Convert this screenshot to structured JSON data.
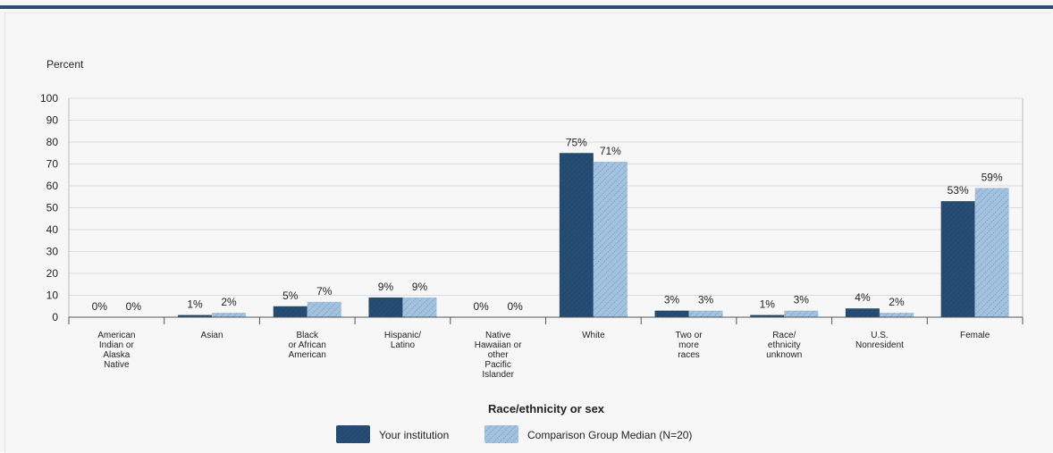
{
  "chart_data": {
    "type": "bar",
    "ylabel": "Percent",
    "xlabel": "Race/ethnicity or sex",
    "ylim": [
      0,
      100
    ],
    "yticks": [
      0,
      10,
      20,
      30,
      40,
      50,
      60,
      70,
      80,
      90,
      100
    ],
    "grid": true,
    "legend_position": "bottom",
    "categories": [
      [
        "American",
        "Indian or",
        "Alaska",
        "Native"
      ],
      [
        "Asian"
      ],
      [
        "Black",
        "or African",
        "American"
      ],
      [
        "Hispanic/",
        "Latino"
      ],
      [
        "Native",
        "Hawaiian or",
        "other",
        "Pacific",
        "Islander"
      ],
      [
        "White"
      ],
      [
        "Two or",
        "more",
        "races"
      ],
      [
        "Race/",
        "ethnicity",
        "unknown"
      ],
      [
        "U.S.",
        "Nonresident"
      ],
      [
        "Female"
      ]
    ],
    "series": [
      {
        "name": "Your institution",
        "color": "#244a73",
        "pattern": "solid",
        "values": [
          0,
          1,
          5,
          9,
          0,
          75,
          3,
          1,
          4,
          53
        ],
        "labels": [
          "0%",
          "1%",
          "5%",
          "9%",
          "0%",
          "75%",
          "3%",
          "1%",
          "4%",
          "53%"
        ]
      },
      {
        "name": "Comparison Group Median (N=20)",
        "color": "#9dbddd",
        "pattern": "hatched",
        "values": [
          0,
          2,
          7,
          9,
          0,
          71,
          3,
          3,
          2,
          59
        ],
        "labels": [
          "0%",
          "2%",
          "7%",
          "9%",
          "0%",
          "71%",
          "3%",
          "3%",
          "2%",
          "59%"
        ]
      }
    ]
  }
}
